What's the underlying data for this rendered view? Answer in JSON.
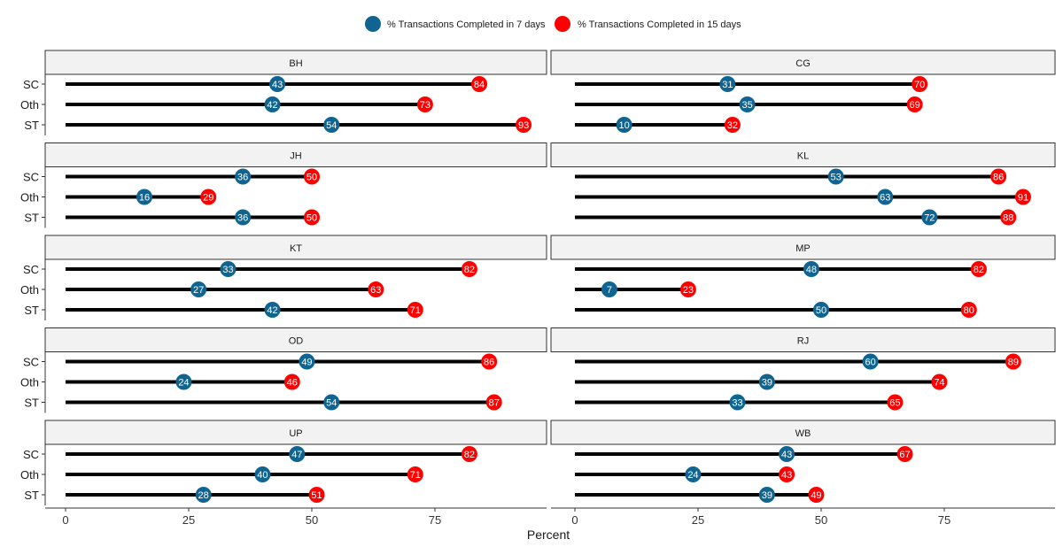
{
  "chart_data": {
    "type": "dumbbell",
    "xlabel": "Percent",
    "ylabel": "",
    "xlim": [
      0,
      94
    ],
    "xticks": [
      0,
      25,
      50,
      75
    ],
    "grid": false,
    "legend_position": "top",
    "categories": [
      "SC",
      "Oth",
      "ST"
    ],
    "series": [
      {
        "name": "% Transactions Completed in 7 days",
        "color": "#0f6491"
      },
      {
        "name": "% Transactions Completed in 15 days",
        "color": "#ff0000"
      }
    ],
    "facets": [
      {
        "label": "BH",
        "seven_day": [
          43,
          42,
          54
        ],
        "fifteen_day": [
          84,
          73,
          93
        ]
      },
      {
        "label": "CG",
        "seven_day": [
          31,
          35,
          10
        ],
        "fifteen_day": [
          70,
          69,
          32
        ]
      },
      {
        "label": "JH",
        "seven_day": [
          36,
          16,
          36
        ],
        "fifteen_day": [
          50,
          29,
          50
        ]
      },
      {
        "label": "KL",
        "seven_day": [
          53,
          63,
          72
        ],
        "fifteen_day": [
          86,
          91,
          88
        ]
      },
      {
        "label": "KT",
        "seven_day": [
          33,
          27,
          42
        ],
        "fifteen_day": [
          82,
          63,
          71
        ]
      },
      {
        "label": "MP",
        "seven_day": [
          48,
          7,
          50
        ],
        "fifteen_day": [
          82,
          23,
          80
        ]
      },
      {
        "label": "OD",
        "seven_day": [
          49,
          24,
          54
        ],
        "fifteen_day": [
          86,
          46,
          87
        ]
      },
      {
        "label": "RJ",
        "seven_day": [
          60,
          39,
          33
        ],
        "fifteen_day": [
          89,
          74,
          65
        ]
      },
      {
        "label": "UP",
        "seven_day": [
          47,
          40,
          28
        ],
        "fifteen_day": [
          82,
          71,
          51
        ]
      },
      {
        "label": "WB",
        "seven_day": [
          43,
          24,
          39
        ],
        "fifteen_day": [
          67,
          43,
          49
        ]
      }
    ]
  }
}
